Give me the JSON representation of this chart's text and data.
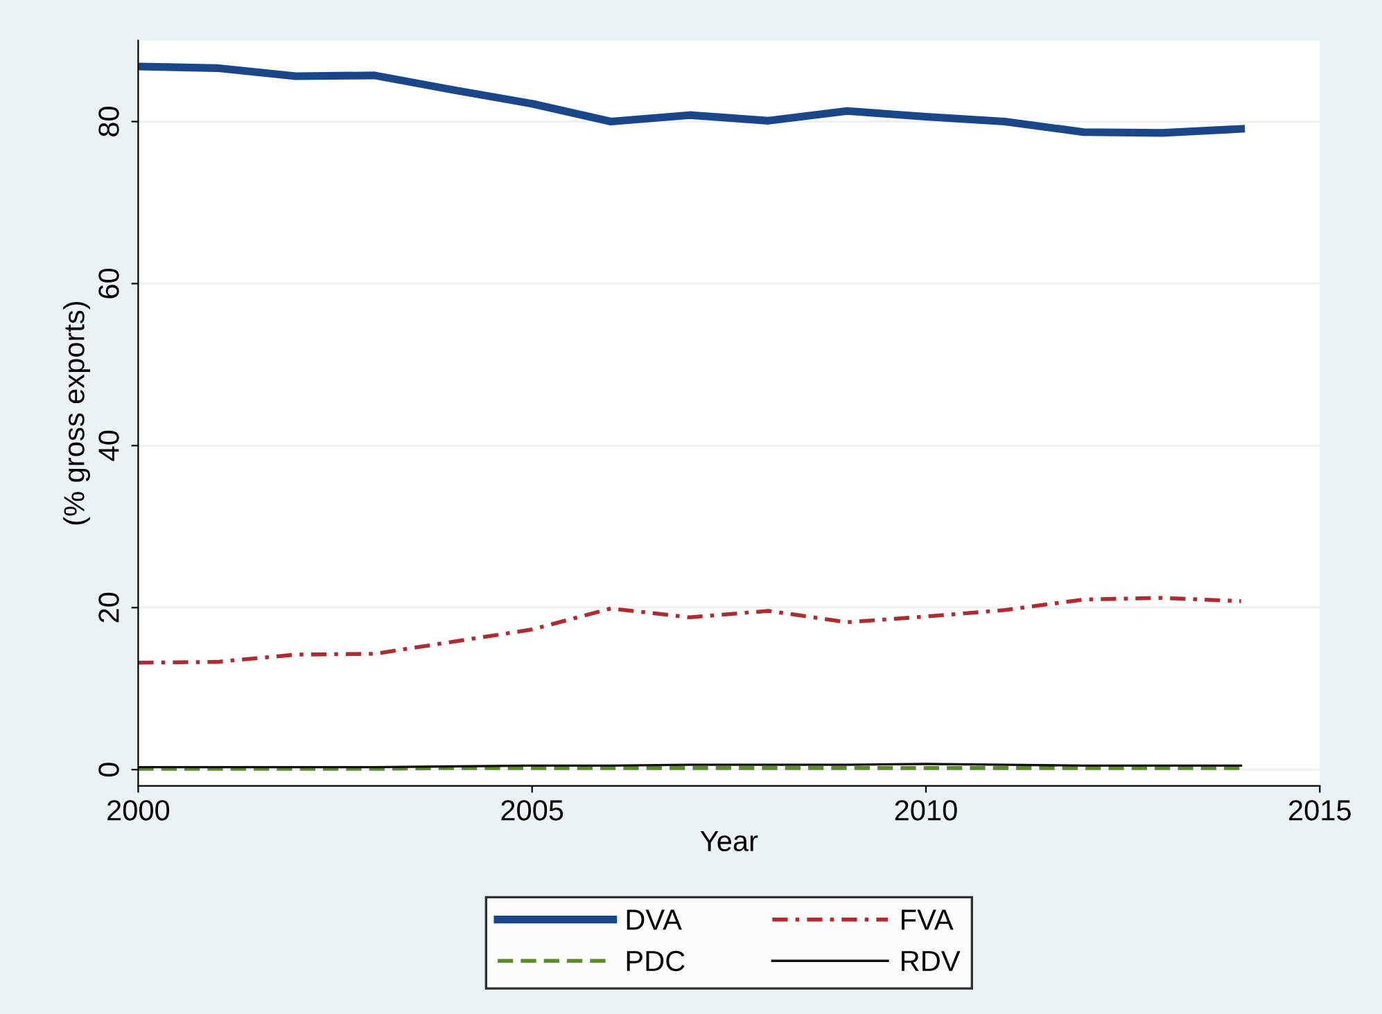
{
  "chart_data": {
    "type": "line",
    "xlabel": "Year",
    "ylabel": "(% gross exports)",
    "x": [
      2000,
      2001,
      2002,
      2003,
      2004,
      2005,
      2006,
      2007,
      2008,
      2009,
      2010,
      2011,
      2012,
      2013,
      2014
    ],
    "xlim": [
      2000,
      2015
    ],
    "xticks": [
      2000,
      2005,
      2010,
      2015
    ],
    "ylim": [
      -2,
      90
    ],
    "yticks": [
      0,
      20,
      40,
      60,
      80
    ],
    "grid": "y",
    "legend": "bottom",
    "series": [
      {
        "name": "DVA",
        "color": "#1a4789",
        "line_style": "solid",
        "values": [
          86.8,
          86.6,
          85.6,
          85.7,
          83.9,
          82.2,
          80.0,
          80.8,
          80.1,
          81.3,
          80.6,
          80.0,
          78.7,
          78.6,
          79.1
        ]
      },
      {
        "name": "FVA",
        "color": "#b02a2f",
        "line_style": "dashdot",
        "values": [
          13.2,
          13.3,
          14.2,
          14.3,
          15.8,
          17.3,
          19.9,
          18.8,
          19.6,
          18.2,
          18.9,
          19.7,
          21.0,
          21.2,
          20.8
        ]
      },
      {
        "name": "PDC",
        "color": "#5d8a2c",
        "line_style": "dashed",
        "values": [
          0.1,
          0.1,
          0.1,
          0.1,
          0.2,
          0.2,
          0.2,
          0.2,
          0.2,
          0.2,
          0.2,
          0.2,
          0.2,
          0.2,
          0.2
        ]
      },
      {
        "name": "RDV",
        "color": "#111111",
        "line_style": "solid",
        "values": [
          0.3,
          0.3,
          0.3,
          0.3,
          0.4,
          0.5,
          0.5,
          0.6,
          0.6,
          0.6,
          0.7,
          0.6,
          0.5,
          0.5,
          0.5
        ]
      }
    ]
  }
}
